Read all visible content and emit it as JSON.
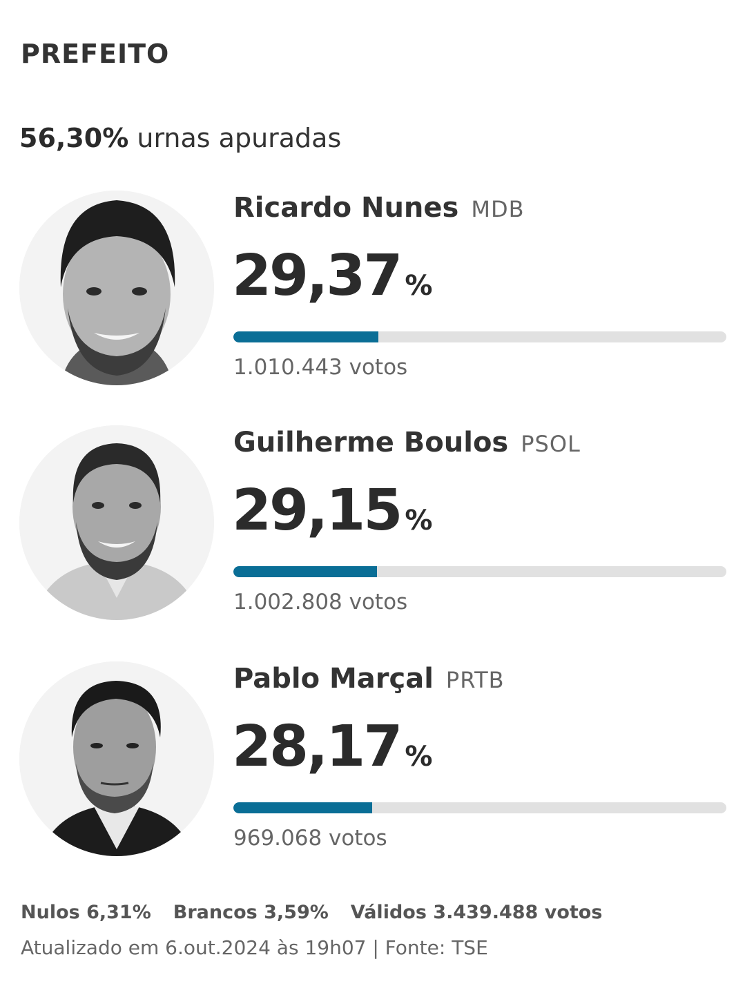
{
  "office": "PREFEITO",
  "counted": {
    "percent": "56,30%",
    "label": "urnas apuradas"
  },
  "candidates": [
    {
      "name": "Ricardo Nunes",
      "party": "MDB",
      "percent": "29,37",
      "percent_symbol": "%",
      "votes": "1.010.443 votos",
      "bar_fraction": 0.2937
    },
    {
      "name": "Guilherme Boulos",
      "party": "PSOL",
      "percent": "29,15",
      "percent_symbol": "%",
      "votes": "1.002.808 votos",
      "bar_fraction": 0.2915
    },
    {
      "name": "Pablo Marçal",
      "party": "PRTB",
      "percent": "28,17",
      "percent_symbol": "%",
      "votes": "969.068 votos",
      "bar_fraction": 0.2817
    }
  ],
  "summary": {
    "nulos": "Nulos 6,31%",
    "brancos": "Brancos 3,59%",
    "validos": "Válidos 3.439.488 votos"
  },
  "updated": "Atualizado em 6.out.2024 às 19h07 | Fonte: TSE",
  "colors": {
    "bar_fill": "#0a6e96",
    "bar_track": "#e1e1e1"
  }
}
